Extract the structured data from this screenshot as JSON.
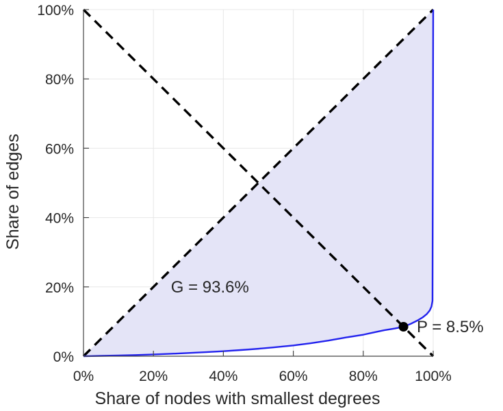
{
  "chart_data": {
    "type": "area",
    "title": "",
    "xlabel": "Share of nodes with smallest degrees",
    "ylabel": "Share of edges",
    "xlim": [
      0,
      100
    ],
    "ylim": [
      0,
      100
    ],
    "grid": true,
    "x_tick_values": [
      0,
      20,
      40,
      60,
      80,
      100
    ],
    "x_tick_labels": [
      "0%",
      "20%",
      "40%",
      "60%",
      "80%",
      "100%"
    ],
    "y_tick_values": [
      0,
      20,
      40,
      60,
      80,
      100
    ],
    "y_tick_labels": [
      "0%",
      "20%",
      "40%",
      "60%",
      "80%",
      "100%"
    ],
    "colors": {
      "curve": "#2222ee",
      "fill": "#e4e4f7",
      "dashed_lines": "#000000",
      "marker": "#000000",
      "text": "#262626",
      "grid": "#e7e7e7",
      "axis": "#454545"
    },
    "series": [
      {
        "name": "lorenz-curve",
        "style": "solid",
        "color": "#2222ee",
        "points": [
          [
            0,
            0
          ],
          [
            5,
            0.1
          ],
          [
            10,
            0.2
          ],
          [
            15,
            0.33
          ],
          [
            20,
            0.5
          ],
          [
            25,
            0.7
          ],
          [
            30,
            0.92
          ],
          [
            35,
            1.18
          ],
          [
            40,
            1.45
          ],
          [
            45,
            1.78
          ],
          [
            50,
            2.15
          ],
          [
            55,
            2.6
          ],
          [
            60,
            3.1
          ],
          [
            65,
            3.75
          ],
          [
            70,
            4.5
          ],
          [
            75,
            5.4
          ],
          [
            80,
            6.2
          ],
          [
            83,
            6.85
          ],
          [
            86,
            7.5
          ],
          [
            89,
            8.0
          ],
          [
            91.5,
            8.5
          ],
          [
            93.5,
            9.3
          ],
          [
            95.5,
            10.3
          ],
          [
            97,
            11.2
          ],
          [
            98.2,
            12.2
          ],
          [
            99,
            13.2
          ],
          [
            99.5,
            14.3
          ],
          [
            99.8,
            16
          ],
          [
            100,
            100
          ]
        ]
      },
      {
        "name": "equality-diagonal",
        "style": "dashed",
        "color": "#000000",
        "points": [
          [
            0,
            0
          ],
          [
            100,
            100
          ]
        ]
      },
      {
        "name": "anti-diagonal",
        "style": "dashed",
        "color": "#000000",
        "points": [
          [
            0,
            100
          ],
          [
            100,
            0
          ]
        ]
      }
    ],
    "fill_between": {
      "upper": "equality-diagonal",
      "lower": "lorenz-curve",
      "color": "#e4e4f7"
    },
    "annotations": [
      {
        "label": "G = 93.6%",
        "x": 25,
        "y": 20
      },
      {
        "label": "P = 8.5%",
        "x": 95.3,
        "y": 8.5
      }
    ],
    "marker_point": {
      "x": 91.5,
      "y": 8.5,
      "radius": 7
    },
    "gini_coefficient": "93.6%",
    "p_share": "8.5%"
  }
}
